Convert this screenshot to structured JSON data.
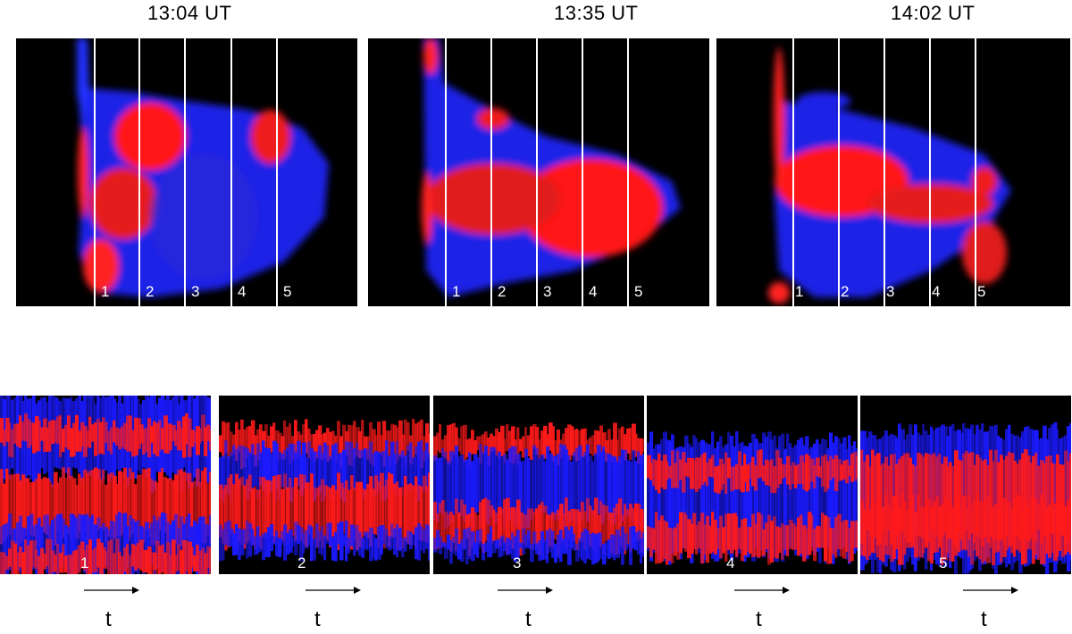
{
  "top_panels": [
    {
      "time": "13:04  UT",
      "slits": [
        "1",
        "2",
        "3",
        "4",
        "5"
      ]
    },
    {
      "time": "13:35  UT",
      "slits": [
        "1",
        "2",
        "3",
        "4",
        "5"
      ]
    },
    {
      "time": "14:02  UT",
      "slits": [
        "1",
        "2",
        "3",
        "4",
        "5"
      ]
    }
  ],
  "bottom_panels": [
    {
      "number": "1",
      "axis_label": "t"
    },
    {
      "number": "2",
      "axis_label": "t"
    },
    {
      "number": "3",
      "axis_label": "t"
    },
    {
      "number": "4",
      "axis_label": "t"
    },
    {
      "number": "5",
      "axis_label": "t"
    }
  ],
  "colors": {
    "red": "#ff1a1a",
    "blue": "#1a1aff",
    "background": "#000000",
    "slit": "#ffffff"
  }
}
